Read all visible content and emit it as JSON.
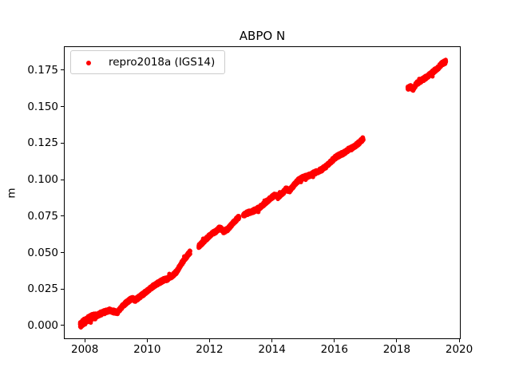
{
  "chart_data": {
    "type": "scatter",
    "title": "ABPO N",
    "xlabel": "",
    "ylabel": "m",
    "legend_position": "upper left",
    "grid": false,
    "axes": {
      "xlim": [
        2007.33,
        2020.05
      ],
      "ylim": [
        -0.0093,
        0.1914
      ],
      "xticks": [
        {
          "value": 2008,
          "label": "2008"
        },
        {
          "value": 2010,
          "label": "2010"
        },
        {
          "value": 2012,
          "label": "2012"
        },
        {
          "value": 2014,
          "label": "2014"
        },
        {
          "value": 2016,
          "label": "2016"
        },
        {
          "value": 2018,
          "label": "2018"
        },
        {
          "value": 2020,
          "label": "2020"
        }
      ],
      "yticks": [
        {
          "value": 0.0,
          "label": "0.000"
        },
        {
          "value": 0.025,
          "label": "0.025"
        },
        {
          "value": 0.05,
          "label": "0.050"
        },
        {
          "value": 0.075,
          "label": "0.075"
        },
        {
          "value": 0.1,
          "label": "0.100"
        },
        {
          "value": 0.125,
          "label": "0.125"
        },
        {
          "value": 0.15,
          "label": "0.150"
        },
        {
          "value": 0.175,
          "label": "0.175"
        }
      ]
    },
    "series": [
      {
        "name": "repro2018a (IGS14)",
        "color": "#ff0000",
        "marker": "dot",
        "marker_radius_px": 2.7,
        "x_units": "decimal year",
        "y_units": "m",
        "noise_band_m": 0.0026,
        "gaps": [
          [
            2011.38,
            2011.65
          ],
          [
            2012.95,
            2013.08
          ],
          [
            2016.93,
            2018.35
          ]
        ],
        "segments": [
          [
            [
              2007.85,
              0.0005
            ],
            [
              2007.95,
              0.002
            ],
            [
              2008.05,
              0.0035
            ],
            [
              2008.2,
              0.0055
            ],
            [
              2008.35,
              0.0065
            ],
            [
              2008.5,
              0.008
            ],
            [
              2008.65,
              0.0095
            ],
            [
              2008.8,
              0.0105
            ],
            [
              2008.95,
              0.0095
            ],
            [
              2009.05,
              0.009
            ],
            [
              2009.2,
              0.013
            ],
            [
              2009.35,
              0.016
            ],
            [
              2009.5,
              0.0185
            ],
            [
              2009.62,
              0.0175
            ],
            [
              2009.75,
              0.0195
            ],
            [
              2009.9,
              0.022
            ],
            [
              2010.05,
              0.0245
            ],
            [
              2010.2,
              0.027
            ],
            [
              2010.35,
              0.029
            ],
            [
              2010.5,
              0.031
            ],
            [
              2010.65,
              0.032
            ],
            [
              2010.8,
              0.034
            ],
            [
              2010.95,
              0.037
            ],
            [
              2011.1,
              0.0425
            ],
            [
              2011.25,
              0.047
            ],
            [
              2011.38,
              0.0505
            ]
          ],
          [
            [
              2011.65,
              0.054
            ],
            [
              2011.8,
              0.0575
            ],
            [
              2011.95,
              0.0605
            ],
            [
              2012.08,
              0.063
            ],
            [
              2012.2,
              0.0645
            ],
            [
              2012.33,
              0.067
            ],
            [
              2012.45,
              0.0645
            ],
            [
              2012.58,
              0.066
            ],
            [
              2012.7,
              0.069
            ],
            [
              2012.85,
              0.0725
            ],
            [
              2012.95,
              0.0745
            ]
          ],
          [
            [
              2013.08,
              0.0755
            ],
            [
              2013.2,
              0.077
            ],
            [
              2013.35,
              0.078
            ],
            [
              2013.5,
              0.0795
            ],
            [
              2013.65,
              0.0815
            ],
            [
              2013.8,
              0.0845
            ],
            [
              2013.95,
              0.087
            ],
            [
              2014.1,
              0.0895
            ],
            [
              2014.22,
              0.0885
            ],
            [
              2014.35,
              0.091
            ],
            [
              2014.45,
              0.0935
            ],
            [
              2014.57,
              0.0925
            ],
            [
              2014.7,
              0.096
            ],
            [
              2014.85,
              0.0995
            ],
            [
              2015.0,
              0.1015
            ],
            [
              2015.15,
              0.1025
            ],
            [
              2015.3,
              0.104
            ],
            [
              2015.45,
              0.1055
            ],
            [
              2015.6,
              0.107
            ],
            [
              2015.75,
              0.1095
            ],
            [
              2015.9,
              0.1125
            ],
            [
              2016.05,
              0.1155
            ],
            [
              2016.18,
              0.117
            ],
            [
              2016.32,
              0.1185
            ],
            [
              2016.45,
              0.1205
            ],
            [
              2016.6,
              0.122
            ],
            [
              2016.75,
              0.1245
            ],
            [
              2016.85,
              0.1265
            ],
            [
              2016.93,
              0.128
            ]
          ],
          [
            [
              2018.35,
              0.1625
            ],
            [
              2018.45,
              0.1635
            ],
            [
              2018.52,
              0.162
            ],
            [
              2018.62,
              0.1655
            ],
            [
              2018.75,
              0.1675
            ],
            [
              2018.9,
              0.1695
            ],
            [
              2019.05,
              0.172
            ],
            [
              2019.2,
              0.1745
            ],
            [
              2019.32,
              0.1765
            ],
            [
              2019.45,
              0.1795
            ],
            [
              2019.58,
              0.181
            ]
          ]
        ]
      }
    ]
  }
}
